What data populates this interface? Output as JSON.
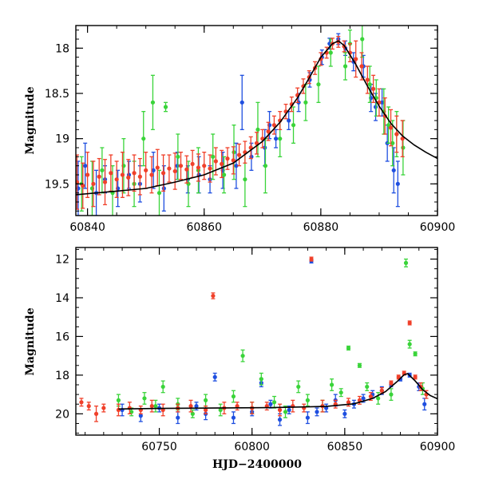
{
  "chart_data": [
    {
      "type": "scatter",
      "panel": "top",
      "ylabel": "Magnitude",
      "xlabel": "",
      "xlim": [
        60838,
        60900
      ],
      "ylim": [
        19.85,
        17.75
      ],
      "y_inverted": true,
      "x_ticks": [
        60840,
        60860,
        60880,
        60900
      ],
      "x_tick_labels": [
        "60840",
        "60860",
        "60880",
        "60900"
      ],
      "y_ticks": [
        18,
        18.5,
        19,
        19.5
      ],
      "y_tick_labels": [
        "18",
        "18.5",
        "19",
        "19.5"
      ],
      "colors": {
        "blue": "#1f4fe0",
        "green": "#3ad43a",
        "red": "#f0402a",
        "model": "#000000"
      },
      "model_curve": {
        "x": [
          60838,
          60845,
          60850,
          60855,
          60860,
          60865,
          60870,
          60873,
          60876,
          60878,
          60880,
          60882,
          60883,
          60884,
          60886,
          60888,
          60890,
          60892,
          60894,
          60896,
          60898,
          60900
        ],
        "y": [
          19.62,
          19.58,
          19.55,
          19.48,
          19.4,
          19.27,
          19.03,
          18.82,
          18.55,
          18.33,
          18.1,
          17.95,
          17.92,
          17.97,
          18.18,
          18.42,
          18.64,
          18.83,
          18.97,
          19.07,
          19.15,
          19.22
        ]
      },
      "series": [
        {
          "color": "blue",
          "x": [
            60838.4,
            60839.6,
            60841.5,
            60843.0,
            60845.2,
            60847.1,
            60849.0,
            60851.3,
            60853.1,
            60855.4,
            60857.2,
            60859.1,
            60861.0,
            60863.2,
            60865.5,
            60866.5,
            60868.1,
            60870.4,
            60871.2,
            60872.3,
            60874.5,
            60876.2,
            60878.1,
            60880.2,
            60881.5,
            60883.0,
            60884.2,
            60885.6,
            60887.3,
            60888.6,
            60889.4,
            60890.5,
            60891.4,
            60892.5,
            60893.2
          ],
          "y": [
            19.55,
            19.3,
            19.6,
            19.45,
            19.55,
            19.4,
            19.5,
            19.35,
            19.55,
            19.3,
            19.45,
            19.4,
            19.45,
            19.35,
            19.3,
            18.6,
            19.2,
            19.1,
            18.85,
            19.0,
            18.8,
            18.6,
            18.35,
            18.1,
            17.95,
            17.9,
            18.0,
            18.15,
            18.2,
            18.55,
            18.65,
            18.6,
            19.05,
            19.35,
            19.5
          ],
          "err": [
            0.3,
            0.25,
            0.25,
            0.15,
            0.2,
            0.15,
            0.2,
            0.2,
            0.25,
            0.15,
            0.15,
            0.2,
            0.15,
            0.2,
            0.25,
            0.3,
            0.15,
            0.2,
            0.15,
            0.1,
            0.1,
            0.1,
            0.08,
            0.08,
            0.06,
            0.06,
            0.08,
            0.1,
            0.12,
            0.15,
            0.15,
            0.15,
            0.2,
            0.25,
            0.25
          ]
        },
        {
          "color": "green",
          "x": [
            60839.0,
            60840.8,
            60842.5,
            60844.3,
            60846.2,
            60848.0,
            60849.6,
            60851.2,
            60852.3,
            60853.4,
            60855.5,
            60857.3,
            60859.0,
            60861.5,
            60863.4,
            60865.1,
            60867.0,
            60869.2,
            60870.5,
            60873.0,
            60875.3,
            60877.4,
            60879.6,
            60881.7,
            60884.2,
            60885.0,
            60887.1,
            60888.4,
            60889.5,
            60890.8,
            60891.6,
            60892.3,
            60893.0,
            60894.1
          ],
          "y": [
            19.5,
            19.55,
            19.35,
            19.6,
            19.3,
            19.5,
            19.0,
            18.6,
            19.6,
            18.65,
            19.2,
            19.5,
            19.35,
            19.2,
            19.4,
            19.15,
            19.45,
            18.9,
            19.3,
            19.0,
            18.85,
            18.6,
            18.4,
            18.05,
            18.2,
            17.95,
            17.9,
            18.4,
            18.55,
            18.7,
            18.85,
            19.05,
            18.95,
            19.1
          ],
          "err": [
            0.3,
            0.3,
            0.25,
            0.3,
            0.3,
            0.25,
            0.3,
            0.3,
            0.25,
            0.05,
            0.25,
            0.25,
            0.25,
            0.25,
            0.2,
            0.3,
            0.3,
            0.3,
            0.3,
            0.2,
            0.2,
            0.2,
            0.2,
            0.15,
            0.15,
            0.15,
            0.2,
            0.2,
            0.2,
            0.25,
            0.2,
            0.25,
            0.25,
            0.3
          ]
        },
        {
          "color": "red",
          "x": [
            60838.2,
            60839.2,
            60840.0,
            60841.0,
            60842.0,
            60843.0,
            60844.0,
            60845.0,
            60846.0,
            60847.0,
            60848.0,
            60849.0,
            60850.0,
            60851.0,
            60852.0,
            60853.0,
            60854.0,
            60855.0,
            60856.0,
            60857.0,
            60858.0,
            60859.0,
            60860.0,
            60861.0,
            60862.0,
            60863.0,
            60864.0,
            60865.0,
            60866.0,
            60867.0,
            60868.0,
            60869.0,
            60870.0,
            60871.0,
            60872.0,
            60873.0,
            60874.0,
            60875.0,
            60876.0,
            60877.0,
            60878.0,
            60879.0,
            60880.0,
            60881.0,
            60882.0,
            60883.0,
            60884.0,
            60885.0,
            60886.0,
            60887.0,
            60888.0,
            60889.0,
            60890.0,
            60891.0,
            60892.0,
            60893.0,
            60894.0
          ],
          "y": [
            19.48,
            19.52,
            19.4,
            19.5,
            19.42,
            19.48,
            19.38,
            19.45,
            19.4,
            19.43,
            19.38,
            19.42,
            19.35,
            19.4,
            19.32,
            19.38,
            19.33,
            19.36,
            19.3,
            19.34,
            19.28,
            19.32,
            19.3,
            19.33,
            19.25,
            19.28,
            19.22,
            19.24,
            19.18,
            19.15,
            19.1,
            19.05,
            19.0,
            18.92,
            18.85,
            18.8,
            18.7,
            18.62,
            18.52,
            18.42,
            18.32,
            18.22,
            18.12,
            18.05,
            17.95,
            17.93,
            17.98,
            18.05,
            18.12,
            18.2,
            18.35,
            18.45,
            18.6,
            18.75,
            18.88,
            18.95,
            19.0
          ],
          "err": [
            0.3,
            0.25,
            0.25,
            0.25,
            0.2,
            0.25,
            0.2,
            0.2,
            0.25,
            0.2,
            0.2,
            0.2,
            0.2,
            0.2,
            0.2,
            0.2,
            0.15,
            0.2,
            0.15,
            0.15,
            0.15,
            0.15,
            0.15,
            0.15,
            0.15,
            0.15,
            0.12,
            0.15,
            0.12,
            0.12,
            0.12,
            0.12,
            0.1,
            0.1,
            0.1,
            0.1,
            0.08,
            0.08,
            0.08,
            0.08,
            0.07,
            0.07,
            0.07,
            0.06,
            0.06,
            0.06,
            0.06,
            0.1,
            0.2,
            0.15,
            0.15,
            0.15,
            0.15,
            0.2,
            0.2,
            0.2,
            0.2
          ]
        }
      ]
    },
    {
      "type": "scatter",
      "panel": "bottom",
      "ylabel": "Magnitude",
      "xlabel": "HJD−2400000",
      "xlim": [
        60705,
        60900
      ],
      "ylim": [
        21.1,
        11.4
      ],
      "y_inverted": true,
      "x_ticks": [
        60750,
        60800,
        60850,
        60900
      ],
      "x_tick_labels": [
        "60750",
        "60800",
        "60850",
        "60900"
      ],
      "y_ticks": [
        12,
        14,
        16,
        18,
        20
      ],
      "y_tick_labels": [
        "12",
        "14",
        "16",
        "18",
        "20"
      ],
      "colors": {
        "blue": "#1f4fe0",
        "green": "#3ad43a",
        "red": "#f0402a",
        "model": "#000000"
      },
      "model_curve": {
        "x": [
          60728,
          60750,
          60780,
          60810,
          60840,
          60855,
          60865,
          60872,
          60878,
          60882,
          60884,
          60888,
          60892,
          60896,
          60900
        ],
        "y": [
          19.75,
          19.72,
          19.7,
          19.68,
          19.62,
          19.48,
          19.2,
          18.85,
          18.35,
          17.98,
          17.92,
          18.3,
          18.75,
          19.05,
          19.22
        ]
      },
      "series": [
        {
          "color": "blue",
          "x": [
            60730,
            60740,
            60750,
            60760,
            60770,
            60775,
            60780,
            60790,
            60800,
            60805,
            60810,
            60815,
            60820,
            60830,
            60832,
            60835,
            60840,
            60845,
            60850,
            60855,
            60860,
            60865,
            60870,
            60875,
            60880,
            60885,
            60890,
            60893
          ],
          "y": [
            19.8,
            20.1,
            19.7,
            20.2,
            19.6,
            20.0,
            18.1,
            20.2,
            19.9,
            18.4,
            19.5,
            20.3,
            19.8,
            20.2,
            12.1,
            19.9,
            19.7,
            19.3,
            20.0,
            19.5,
            19.2,
            19.0,
            18.8,
            18.5,
            18.2,
            18.0,
            18.6,
            19.5
          ],
          "err": [
            0.3,
            0.3,
            0.2,
            0.3,
            0.2,
            0.3,
            0.2,
            0.3,
            0.2,
            0.2,
            0.2,
            0.3,
            0.2,
            0.3,
            0.1,
            0.2,
            0.2,
            0.3,
            0.2,
            0.2,
            0.2,
            0.2,
            0.2,
            0.1,
            0.1,
            0.1,
            0.2,
            0.3
          ]
        },
        {
          "color": "green",
          "x": [
            60728,
            60735,
            60742,
            60748,
            60752,
            60760,
            60768,
            60775,
            60783,
            60790,
            60795,
            60800,
            60805,
            60812,
            60818,
            60825,
            60830,
            60838,
            60843,
            60848,
            60852,
            60858,
            60862,
            60868,
            60875,
            60883,
            60885,
            60888,
            60892
          ],
          "y": [
            19.3,
            19.9,
            19.2,
            19.6,
            18.6,
            19.5,
            20.0,
            19.3,
            19.8,
            19.1,
            17.0,
            19.7,
            18.2,
            19.4,
            19.9,
            18.6,
            19.3,
            19.6,
            18.5,
            18.9,
            16.6,
            17.5,
            18.6,
            19.2,
            19.0,
            12.2,
            16.4,
            16.9,
            18.7
          ],
          "err": [
            0.3,
            0.2,
            0.3,
            0.3,
            0.3,
            0.3,
            0.2,
            0.3,
            0.3,
            0.3,
            0.3,
            0.3,
            0.3,
            0.3,
            0.3,
            0.3,
            0.3,
            0.3,
            0.3,
            0.2,
            0.1,
            0.1,
            0.2,
            0.3,
            0.3,
            0.2,
            0.2,
            0.1,
            0.3
          ]
        },
        {
          "color": "red",
          "x": [
            60708,
            60712,
            60716,
            60720,
            60728,
            60734,
            60740,
            60746,
            60752,
            60760,
            60767,
            60775,
            60779,
            60785,
            60792,
            60800,
            60808,
            60815,
            60822,
            60828,
            60832,
            60838,
            60845,
            60852,
            60858,
            60864,
            60870,
            60875,
            60879,
            60882,
            60885,
            60888,
            60891,
            60894
          ],
          "y": [
            19.4,
            19.6,
            20.0,
            19.7,
            19.8,
            19.7,
            19.8,
            19.6,
            19.8,
            19.7,
            19.6,
            19.8,
            13.9,
            19.7,
            19.6,
            19.7,
            19.6,
            19.8,
            19.6,
            19.7,
            12.0,
            19.6,
            19.5,
            19.4,
            19.3,
            19.1,
            18.8,
            18.4,
            18.1,
            17.9,
            15.3,
            18.1,
            18.6,
            19.0
          ],
          "err": [
            0.2,
            0.2,
            0.4,
            0.2,
            0.3,
            0.3,
            0.2,
            0.3,
            0.3,
            0.2,
            0.3,
            0.2,
            0.15,
            0.3,
            0.2,
            0.3,
            0.2,
            0.3,
            0.3,
            0.2,
            0.1,
            0.3,
            0.2,
            0.2,
            0.2,
            0.2,
            0.15,
            0.1,
            0.1,
            0.1,
            0.1,
            0.1,
            0.2,
            0.2
          ]
        }
      ]
    }
  ]
}
